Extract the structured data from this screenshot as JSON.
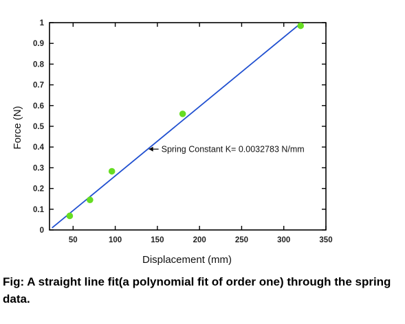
{
  "caption": "Fig: A straight line fit(a polynomial fit of order one) through the spring data.",
  "chart_data": {
    "type": "scatter",
    "title": "",
    "xlabel": "Displacement (mm)",
    "ylabel": "Force (N)",
    "xlim": [
      22,
      350
    ],
    "ylim": [
      0,
      1
    ],
    "xticks": [
      50,
      100,
      150,
      200,
      250,
      300,
      350
    ],
    "yticks": [
      0,
      0.1,
      0.2,
      0.3,
      0.4,
      0.5,
      0.6,
      0.7,
      0.8,
      0.9,
      1
    ],
    "grid": false,
    "series": [
      {
        "kind": "points",
        "color": "#66dd22",
        "points": [
          {
            "x": 46,
            "y": 0.068
          },
          {
            "x": 70,
            "y": 0.145
          },
          {
            "x": 96,
            "y": 0.283
          },
          {
            "x": 180,
            "y": 0.56
          },
          {
            "x": 320,
            "y": 0.985
          }
        ]
      },
      {
        "kind": "fit-line",
        "color": "#1f4fd0",
        "x": [
          25,
          318
        ],
        "y": [
          0.01,
          0.99
        ]
      }
    ],
    "annotation": {
      "text": "Spring Constant K= 0.0032783 N/mm",
      "x": 140,
      "y": 0.39
    }
  }
}
